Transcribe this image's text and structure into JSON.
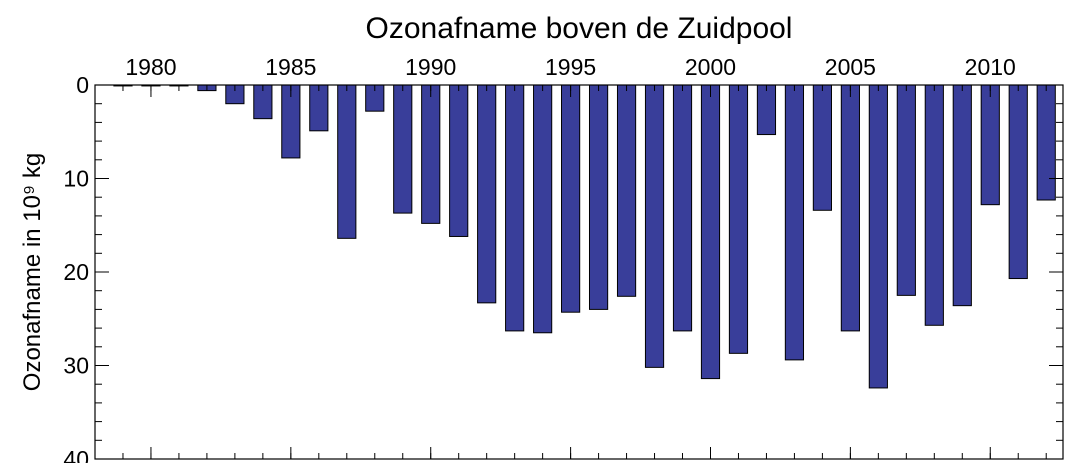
{
  "chart_data": {
    "type": "bar",
    "title": "Ozonafname boven de Zuidpool",
    "y_label": "Ozonafname in 10⁹ kg",
    "x": [
      1979,
      1980,
      1981,
      1982,
      1983,
      1984,
      1985,
      1986,
      1987,
      1988,
      1989,
      1990,
      1991,
      1992,
      1993,
      1994,
      1995,
      1996,
      1997,
      1998,
      1999,
      2000,
      2001,
      2002,
      2003,
      2004,
      2005,
      2006,
      2007,
      2008,
      2009,
      2010,
      2011,
      2012
    ],
    "values": [
      0.1,
      0.1,
      0.1,
      0.6,
      2.0,
      3.6,
      7.8,
      4.9,
      16.4,
      2.8,
      13.7,
      14.8,
      16.2,
      23.3,
      26.3,
      26.5,
      24.3,
      24.0,
      22.6,
      30.2,
      26.3,
      31.4,
      28.7,
      5.3,
      29.4,
      13.4,
      26.3,
      32.4,
      22.5,
      25.7,
      23.6,
      12.8,
      20.7,
      12.3
    ],
    "color": "#393e9a",
    "xlim": [
      1978,
      2012.6
    ],
    "xticks": [
      1980,
      1985,
      1990,
      1995,
      2000,
      2005,
      2010
    ],
    "ylim": [
      0,
      40
    ],
    "yticks": [
      0,
      10,
      20,
      30,
      40
    ],
    "y_inverted": true,
    "x_axis_position": "top"
  }
}
